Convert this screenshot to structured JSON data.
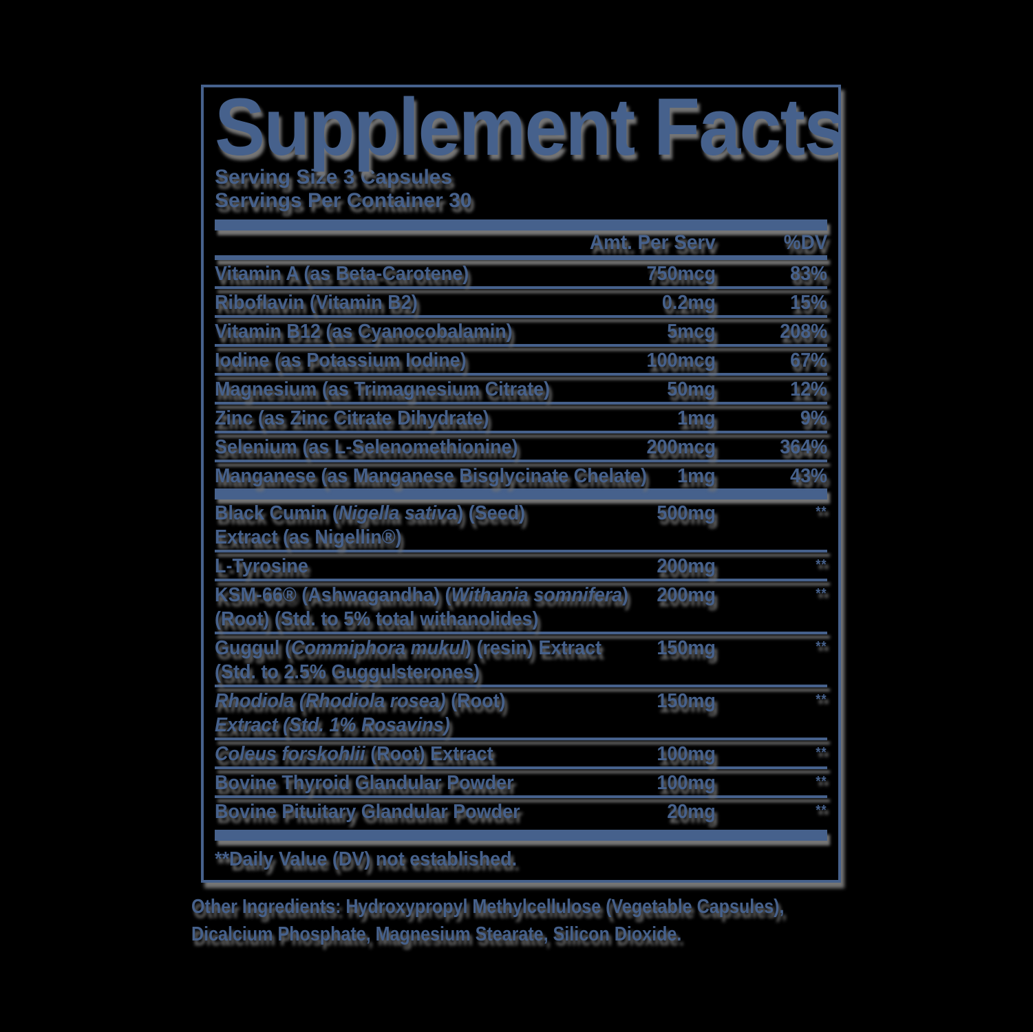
{
  "colors": {
    "text": "#46618c",
    "shadow": "#757575",
    "background": "#000000"
  },
  "label": {
    "title": "Supplement Facts",
    "serving_size": "Serving Size 3 Capsules",
    "servings_per_container": "Servings Per Container 30",
    "columns": {
      "amount": "Amt. Per Serv",
      "dv": "%DV"
    },
    "rows": [
      {
        "segments": [
          [
            "Vitamin A (as Beta-Carotene)",
            "r"
          ]
        ],
        "amount": "750mcg",
        "dv": "83%"
      },
      {
        "segments": [
          [
            "Riboflavin (Vitamin B2)",
            "r"
          ]
        ],
        "amount": "0.2mg",
        "dv": "15%"
      },
      {
        "segments": [
          [
            "Vitamin B12 (as Cyanocobalamin)",
            "r"
          ]
        ],
        "amount": "5mcg",
        "dv": "208%"
      },
      {
        "segments": [
          [
            "Iodine (as Potassium Iodine)",
            "r"
          ]
        ],
        "amount": "100mcg",
        "dv": "67%"
      },
      {
        "segments": [
          [
            "Magnesium (as Trimagnesium Citrate)",
            "r"
          ]
        ],
        "amount": "50mg",
        "dv": "12%"
      },
      {
        "segments": [
          [
            "Zinc (as Zinc Citrate Dihydrate)",
            "r"
          ]
        ],
        "amount": "1mg",
        "dv": "9%"
      },
      {
        "segments": [
          [
            "Selenium (as L-Selenomethionine)",
            "r"
          ]
        ],
        "amount": "200mcg",
        "dv": "364%"
      },
      {
        "segments": [
          [
            "Manganese (as Manganese Bisglycinate Chelate)",
            "r"
          ]
        ],
        "amount": "1mg",
        "dv": "43%",
        "thick_after": true
      },
      {
        "segments": [
          [
            "Black Cumin (",
            "r"
          ],
          [
            "Nigella sativa",
            "i"
          ],
          [
            ") (Seed)",
            "r"
          ]
        ],
        "segments2": [
          [
            "Extract (as Nigellin®)",
            "r"
          ]
        ],
        "amount": "500mg",
        "dv": "**"
      },
      {
        "segments": [
          [
            "L-Tyrosine",
            "r"
          ]
        ],
        "amount": "200mg",
        "dv": "**"
      },
      {
        "segments": [
          [
            "KSM-66® (Ashwagandha) (",
            "r"
          ],
          [
            "Withania somnifera",
            "i"
          ],
          [
            ")",
            "r"
          ]
        ],
        "segments2": [
          [
            "(Root) (Std. to 5% total withanolides)",
            "r"
          ]
        ],
        "amount": "200mg",
        "dv": "**"
      },
      {
        "segments": [
          [
            "Guggul (",
            "r"
          ],
          [
            "Commiphora mukul",
            "i"
          ],
          [
            ") (resin) Extract",
            "r"
          ]
        ],
        "segments2": [
          [
            "(Std. to 2.5% Guggulsterones)",
            "r"
          ]
        ],
        "amount": "150mg",
        "dv": "**"
      },
      {
        "segments": [
          [
            "Rhodiola (Rhodiola rosea)",
            "i"
          ],
          [
            " (Root)",
            "r"
          ]
        ],
        "segments2": [
          [
            "Extract (Std. 1% Rosavins)",
            "i"
          ]
        ],
        "amount": "150mg",
        "dv": "**"
      },
      {
        "segments": [
          [
            "Coleus forskohlii",
            "i"
          ],
          [
            " (Root) Extract",
            "r"
          ]
        ],
        "amount": "100mg",
        "dv": "**"
      },
      {
        "segments": [
          [
            "Bovine Thyroid Glandular Powder",
            "r"
          ]
        ],
        "amount": "100mg",
        "dv": "**"
      },
      {
        "segments": [
          [
            "Bovine Pituitary Glandular Powder",
            "r"
          ]
        ],
        "amount": "20mg",
        "dv": "**"
      }
    ],
    "footnote": "**Daily Value (DV) not established.",
    "other_ingredients": "Other Ingredients: Hydroxypropyl Methylcellulose (Vegetable Capsules), Dicalcium Phosphate, Magnesium Stearate, Silicon Dioxide."
  }
}
